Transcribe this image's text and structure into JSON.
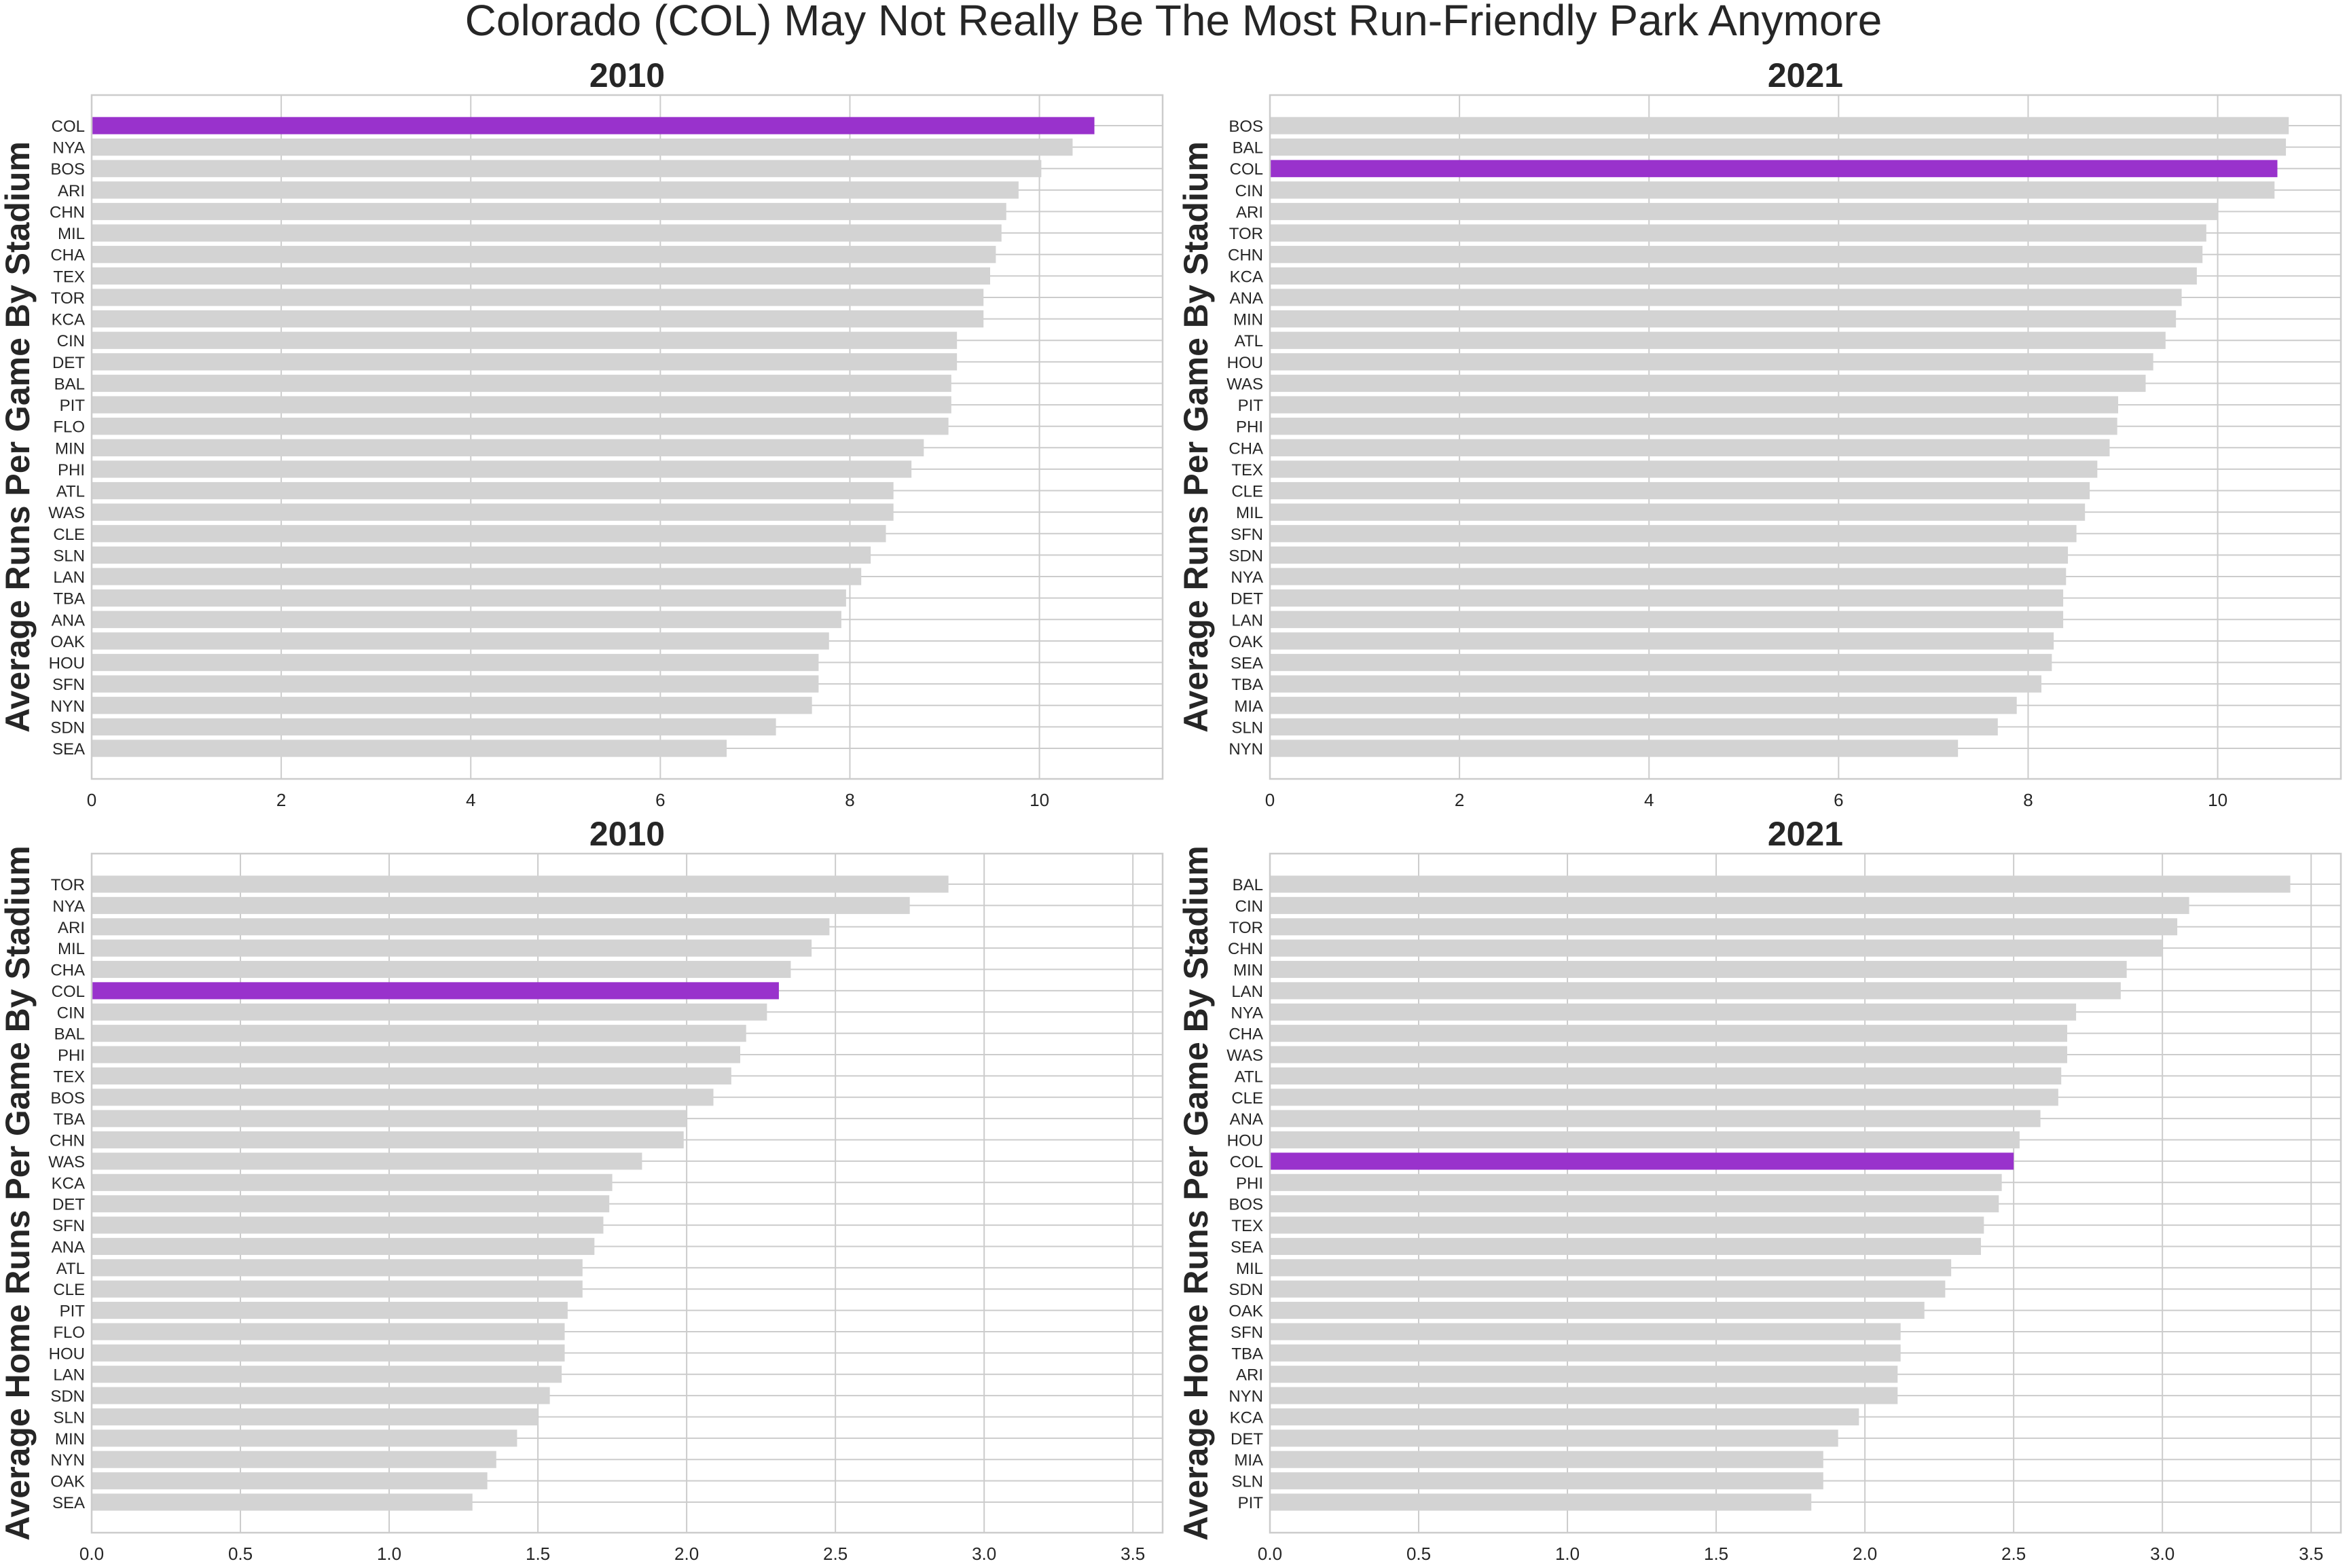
{
  "title": "Colorado (COL) May Not Really Be The Most Run-Friendly Park Anymore",
  "colors": {
    "bar": "#d3d3d3",
    "highlight": "#9932cc",
    "grid": "#cccccc",
    "frame": "#cccccc"
  },
  "chart_data": [
    {
      "type": "bar",
      "orientation": "horizontal",
      "title": "2010",
      "ylabel": "Average Runs Per Game By Stadium",
      "xlabel": "",
      "xlim": [
        0,
        11.3
      ],
      "xticks": [
        "0",
        "2",
        "4",
        "6",
        "8",
        "10"
      ],
      "xtick_values": [
        0,
        2,
        4,
        6,
        8,
        10
      ],
      "highlight": "COL",
      "grid": true,
      "categories": [
        "COL",
        "NYA",
        "BOS",
        "ARI",
        "CHN",
        "MIL",
        "CHA",
        "TEX",
        "TOR",
        "KCA",
        "CIN",
        "DET",
        "BAL",
        "PIT",
        "FLO",
        "MIN",
        "PHI",
        "ATL",
        "WAS",
        "CLE",
        "SLN",
        "LAN",
        "TBA",
        "ANA",
        "OAK",
        "HOU",
        "SFN",
        "NYN",
        "SDN",
        "SEA"
      ],
      "values": [
        10.58,
        10.35,
        10.02,
        9.78,
        9.65,
        9.6,
        9.54,
        9.48,
        9.41,
        9.41,
        9.13,
        9.13,
        9.07,
        9.07,
        9.04,
        8.78,
        8.65,
        8.46,
        8.46,
        8.38,
        8.22,
        8.12,
        7.96,
        7.91,
        7.78,
        7.67,
        7.67,
        7.6,
        7.22,
        6.7
      ]
    },
    {
      "type": "bar",
      "orientation": "horizontal",
      "title": "2021",
      "ylabel": "Average Runs Per Game By Stadium",
      "xlabel": "",
      "xlim": [
        0,
        11.3
      ],
      "xticks": [
        "0",
        "2",
        "4",
        "6",
        "8",
        "10"
      ],
      "xtick_values": [
        0,
        2,
        4,
        6,
        8,
        10
      ],
      "highlight": "COL",
      "grid": true,
      "categories": [
        "BOS",
        "BAL",
        "COL",
        "CIN",
        "ARI",
        "TOR",
        "CHN",
        "KCA",
        "ANA",
        "MIN",
        "ATL",
        "HOU",
        "WAS",
        "PIT",
        "PHI",
        "CHA",
        "TEX",
        "CLE",
        "MIL",
        "SFN",
        "SDN",
        "NYA",
        "DET",
        "LAN",
        "OAK",
        "SEA",
        "TBA",
        "MIA",
        "SLN",
        "NYN"
      ],
      "values": [
        10.75,
        10.72,
        10.63,
        10.6,
        10.0,
        9.88,
        9.84,
        9.78,
        9.62,
        9.56,
        9.45,
        9.32,
        9.24,
        8.95,
        8.94,
        8.86,
        8.73,
        8.65,
        8.6,
        8.51,
        8.42,
        8.4,
        8.37,
        8.37,
        8.27,
        8.25,
        8.14,
        7.88,
        7.68,
        7.26
      ]
    },
    {
      "type": "bar",
      "orientation": "horizontal",
      "title": "2010",
      "ylabel": "Average Home Runs Per Game By Stadium",
      "xlabel": "",
      "xlim": [
        0,
        3.6
      ],
      "xticks": [
        "0.0",
        "0.5",
        "1.0",
        "1.5",
        "2.0",
        "2.5",
        "3.0",
        "3.5"
      ],
      "xtick_values": [
        0,
        0.5,
        1.0,
        1.5,
        2.0,
        2.5,
        3.0,
        3.5
      ],
      "highlight": "COL",
      "grid": true,
      "categories": [
        "TOR",
        "NYA",
        "ARI",
        "MIL",
        "CHA",
        "COL",
        "CIN",
        "BAL",
        "PHI",
        "TEX",
        "BOS",
        "TBA",
        "CHN",
        "WAS",
        "KCA",
        "DET",
        "SFN",
        "ANA",
        "ATL",
        "CLE",
        "PIT",
        "FLO",
        "HOU",
        "LAN",
        "SDN",
        "SLN",
        "MIN",
        "NYN",
        "OAK",
        "SEA"
      ],
      "values": [
        2.88,
        2.75,
        2.48,
        2.42,
        2.35,
        2.31,
        2.27,
        2.2,
        2.18,
        2.15,
        2.09,
        2.0,
        1.99,
        1.85,
        1.75,
        1.74,
        1.72,
        1.69,
        1.65,
        1.65,
        1.6,
        1.59,
        1.59,
        1.58,
        1.54,
        1.5,
        1.43,
        1.36,
        1.33,
        1.28
      ]
    },
    {
      "type": "bar",
      "orientation": "horizontal",
      "title": "2021",
      "ylabel": "Average Home Runs Per Game By Stadium",
      "xlabel": "",
      "xlim": [
        0,
        3.6
      ],
      "xticks": [
        "0.0",
        "0.5",
        "1.0",
        "1.5",
        "2.0",
        "2.5",
        "3.0",
        "3.5"
      ],
      "xtick_values": [
        0,
        0.5,
        1.0,
        1.5,
        2.0,
        2.5,
        3.0,
        3.5
      ],
      "highlight": "COL",
      "grid": true,
      "categories": [
        "BAL",
        "CIN",
        "TOR",
        "CHN",
        "MIN",
        "LAN",
        "NYA",
        "CHA",
        "WAS",
        "ATL",
        "CLE",
        "ANA",
        "HOU",
        "COL",
        "PHI",
        "BOS",
        "TEX",
        "SEA",
        "MIL",
        "SDN",
        "OAK",
        "SFN",
        "TBA",
        "ARI",
        "NYN",
        "KCA",
        "DET",
        "MIA",
        "SLN",
        "PIT"
      ],
      "values": [
        3.43,
        3.09,
        3.05,
        3.0,
        2.88,
        2.86,
        2.71,
        2.68,
        2.68,
        2.66,
        2.65,
        2.59,
        2.52,
        2.5,
        2.46,
        2.45,
        2.4,
        2.39,
        2.29,
        2.27,
        2.2,
        2.12,
        2.12,
        2.11,
        2.11,
        1.98,
        1.91,
        1.86,
        1.86,
        1.82
      ]
    }
  ]
}
